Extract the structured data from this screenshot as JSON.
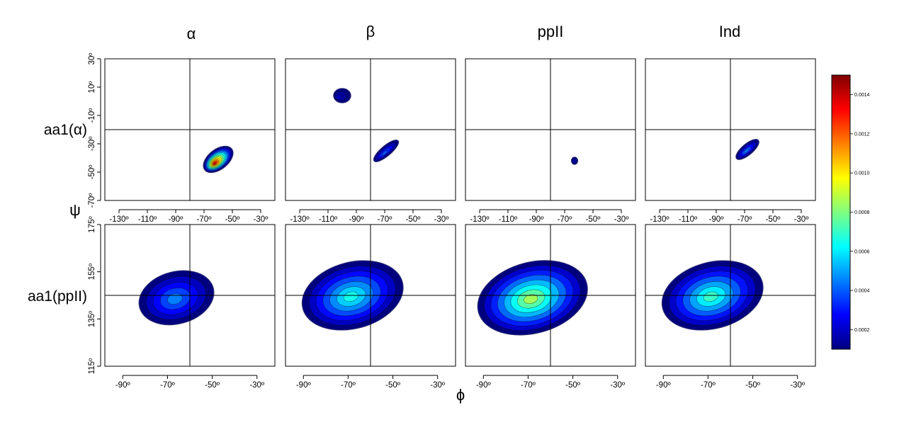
{
  "chart_data": {
    "type": "heatmap",
    "title": "",
    "column_titles": [
      "α",
      "β",
      "ppII",
      "Ind"
    ],
    "row_labels": [
      "aa1(α)",
      "aa1(ppII)"
    ],
    "xlabel": "ϕ",
    "ylabel": "ψ",
    "rows": [
      {
        "xlim": [
          -140,
          -20
        ],
        "ylim": [
          -70,
          30
        ],
        "xticks": [
          -130,
          -110,
          -90,
          -70,
          -50,
          -30
        ],
        "xtick_labels": [
          "-130º",
          "-110º",
          "-90º",
          "-70º",
          "-50º",
          "-30º"
        ],
        "yticks": [
          -70,
          -50,
          -30,
          -10,
          10,
          30
        ],
        "ytick_labels": [
          "-70º",
          "-50º",
          "-30º",
          "-10º",
          "10º",
          "30º"
        ],
        "reference_lines": {
          "x": -80,
          "y": -20
        }
      },
      {
        "xlim": [
          -98,
          -22
        ],
        "ylim": [
          115,
          175
        ],
        "xticks": [
          -90,
          -70,
          -50,
          -30
        ],
        "xtick_labels": [
          "-90º",
          "-70º",
          "-50º",
          "-30º"
        ],
        "yticks": [
          115,
          135,
          155,
          175
        ],
        "ytick_labels": [
          "115º",
          "135º",
          "155º",
          "175º"
        ],
        "reference_lines": {
          "x": -60,
          "y": 145
        }
      }
    ],
    "panels": [
      {
        "row": 0,
        "col": 0,
        "blobs": [
          {
            "cx": -60,
            "cy": -41,
            "rx": 12,
            "ry": 7,
            "angle": -38,
            "peak": 0.00135,
            "sx": 11,
            "sy": 5
          }
        ]
      },
      {
        "row": 0,
        "col": 1,
        "blobs": [
          {
            "cx": -100,
            "cy": 4,
            "rx": 6,
            "ry": 5,
            "angle": 0,
            "peak": 0.00018,
            "sx": 10,
            "sy": 10
          },
          {
            "cx": -69,
            "cy": -35,
            "rx": 11,
            "ry": 3.5,
            "angle": -40,
            "peak": 0.0004,
            "sx": 6,
            "sy": 4
          }
        ]
      },
      {
        "row": 0,
        "col": 2,
        "blobs": [
          {
            "cx": -63,
            "cy": -42,
            "rx": 2.2,
            "ry": 2.5,
            "angle": 0,
            "peak": 0.00022,
            "sx": 3,
            "sy": 3
          }
        ]
      },
      {
        "row": 0,
        "col": 3,
        "blobs": [
          {
            "cx": -68,
            "cy": -34,
            "rx": 10,
            "ry": 3.8,
            "angle": -40,
            "peak": 0.00045,
            "sx": 5,
            "sy": 3
          }
        ]
      },
      {
        "row": 1,
        "col": 0,
        "blobs": [
          {
            "cx": -66,
            "cy": 144,
            "rx": 17,
            "ry": 11,
            "angle": -15,
            "peak": 0.00045,
            "sx": 3,
            "sy": 3
          }
        ]
      },
      {
        "row": 1,
        "col": 1,
        "blobs": [
          {
            "cx": -68,
            "cy": 145,
            "rx": 23,
            "ry": 14,
            "angle": -15,
            "peak": 0.00065,
            "sx": 3,
            "sy": 3
          }
        ]
      },
      {
        "row": 1,
        "col": 2,
        "blobs": [
          {
            "cx": -68,
            "cy": 144,
            "rx": 25,
            "ry": 15,
            "angle": -15,
            "peak": 0.00085,
            "sx": 3,
            "sy": 3
          }
        ]
      },
      {
        "row": 1,
        "col": 3,
        "blobs": [
          {
            "cx": -68,
            "cy": 145,
            "rx": 23,
            "ry": 14,
            "angle": -15,
            "peak": 0.0007,
            "sx": 3,
            "sy": 3
          }
        ]
      }
    ],
    "colorbar": {
      "range": [
        0.0001,
        0.0015
      ],
      "ticks": [
        0.0002,
        0.0004,
        0.0006,
        0.0008,
        0.001,
        0.0012,
        0.0014
      ],
      "tick_labels": [
        "0.0002",
        "0.0004",
        "0.0006",
        "0.0008",
        "0.0010",
        "0.0012",
        "0.0014"
      ],
      "colormap": [
        "#00007f",
        "#0000ff",
        "#007fff",
        "#00ffff",
        "#7fff7f",
        "#ffff00",
        "#ff7f00",
        "#ff0000",
        "#7f0000"
      ]
    },
    "grid": false,
    "legend": "right"
  }
}
